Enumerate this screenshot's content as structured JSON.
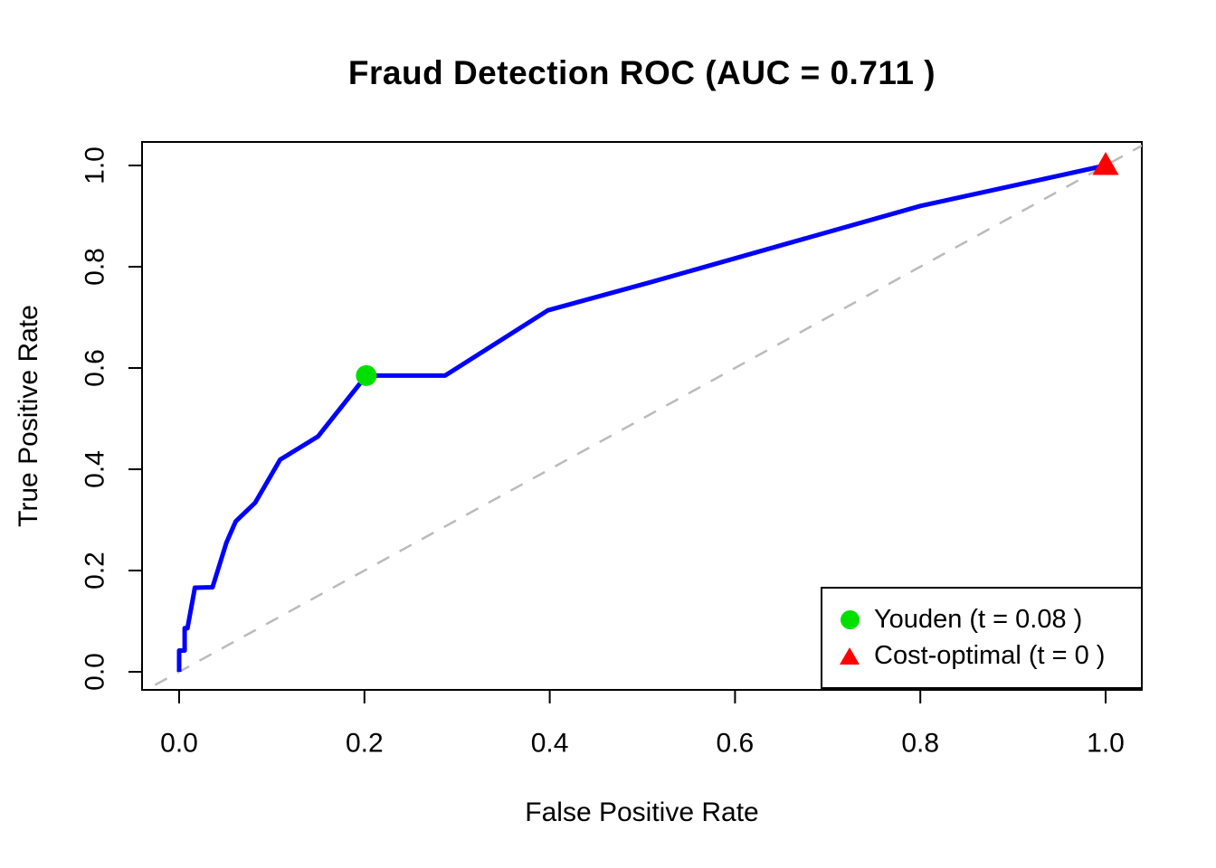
{
  "chart_data": {
    "type": "line",
    "title": "Fraud Detection ROC (AUC = 0.711 )",
    "xlabel": "False Positive Rate",
    "ylabel": "True Positive Rate",
    "xlim": [
      0,
      1
    ],
    "ylim": [
      0,
      1
    ],
    "grid": false,
    "auc": "0.711",
    "x_ticks": [
      "0.0",
      "0.2",
      "0.4",
      "0.6",
      "0.8",
      "1.0"
    ],
    "y_ticks": [
      "0.0",
      "0.2",
      "0.4",
      "0.6",
      "0.8",
      "1.0"
    ],
    "legend_position": "bottomright",
    "series": [
      {
        "key": "chance-diagonal",
        "name": "Chance diagonal",
        "color": "#BBBBBB",
        "width": 2.5,
        "dash": "15 13",
        "clip": true,
        "points": [
          [
            -0.05,
            -0.05
          ],
          [
            1.05,
            1.05
          ]
        ]
      },
      {
        "key": "roc-curve",
        "name": "ROC curve",
        "color": "#0000FF",
        "width": 5,
        "dash": null,
        "clip": false,
        "points": [
          [
            0.0,
            0.0
          ],
          [
            0.0,
            0.042
          ],
          [
            0.006,
            0.042
          ],
          [
            0.006,
            0.086
          ],
          [
            0.009,
            0.086
          ],
          [
            0.017,
            0.166
          ],
          [
            0.036,
            0.167
          ],
          [
            0.051,
            0.255
          ],
          [
            0.061,
            0.297
          ],
          [
            0.082,
            0.334
          ],
          [
            0.109,
            0.419
          ],
          [
            0.15,
            0.465
          ],
          [
            0.202,
            0.585
          ],
          [
            0.287,
            0.585
          ],
          [
            0.398,
            0.714
          ],
          [
            0.51,
            0.77
          ],
          [
            0.8,
            0.92
          ],
          [
            1.0,
            1.0
          ]
        ]
      }
    ],
    "markers": [
      {
        "key": "youden-marker",
        "label": "Youden (t = 0.08 )",
        "shape": "circle",
        "color": "#00E000",
        "x": 0.202,
        "y": 0.585
      },
      {
        "key": "cost-optimal-marker",
        "label": "Cost-optimal (t = 0 )",
        "shape": "triangle",
        "color": "#FF0000",
        "x": 1.0,
        "y": 1.0
      }
    ]
  },
  "legend": {
    "items": [
      {
        "label": "Youden (t = 0.08 )",
        "marker": "circle",
        "color": "#00E000"
      },
      {
        "label": "Cost-optimal (t = 0 )",
        "marker": "triangle",
        "color": "#FF0000"
      }
    ]
  }
}
